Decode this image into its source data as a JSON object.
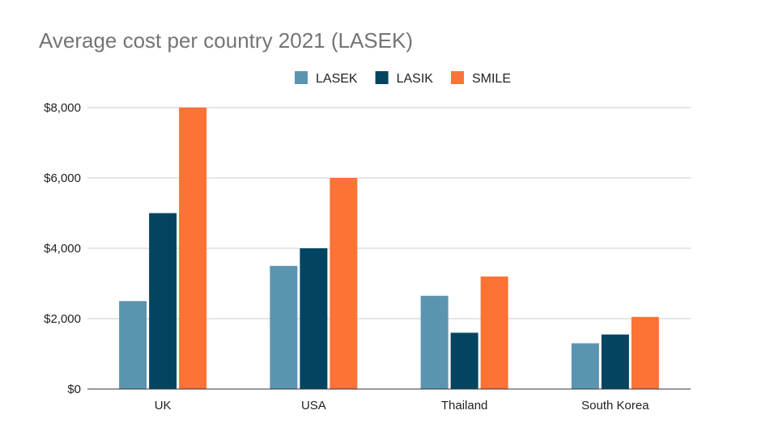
{
  "chart_data": {
    "type": "bar",
    "title": "Average cost per country 2021 (LASEK)",
    "xlabel": "",
    "ylabel": "",
    "categories": [
      "UK",
      "USA",
      "Thailand",
      "South Korea"
    ],
    "series": [
      {
        "name": "LASEK",
        "color": "#5b94b1",
        "values": [
          2500,
          3500,
          2650,
          1300
        ]
      },
      {
        "name": "LASIK",
        "color": "#034561",
        "values": [
          5000,
          4000,
          1600,
          1550
        ]
      },
      {
        "name": "SMILE",
        "color": "#fd7237",
        "values": [
          8000,
          6000,
          3200,
          2050
        ]
      }
    ],
    "ylim": [
      0,
      8000
    ],
    "yticks": [
      0,
      2000,
      4000,
      6000,
      8000
    ],
    "ytick_labels": [
      "$0",
      "$2,000",
      "$4,000",
      "$6,000",
      "$8,000"
    ],
    "grid": true,
    "legend_position": "top-center"
  }
}
